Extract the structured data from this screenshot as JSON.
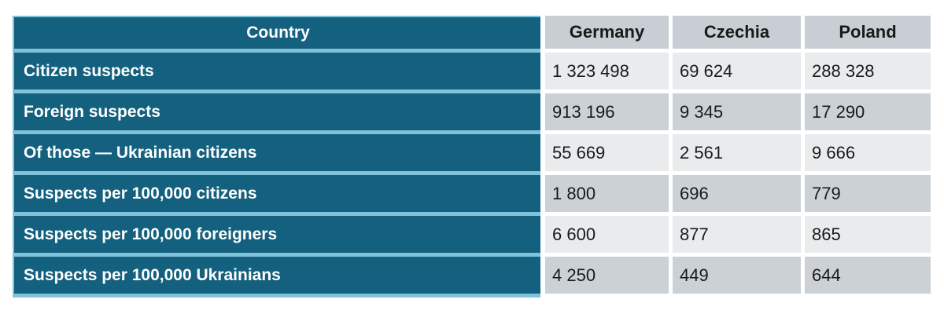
{
  "chart_data": {
    "type": "table",
    "columns": [
      "Country",
      "Germany",
      "Czechia",
      "Poland"
    ],
    "rows": [
      {
        "label": "Citizen suspects",
        "values": [
          "1 323 498",
          "69 624",
          "288 328"
        ]
      },
      {
        "label": "Foreign suspects",
        "values": [
          "913 196",
          "9 345",
          "17 290"
        ]
      },
      {
        "label": "Of those — Ukrainian citizens",
        "values": [
          "55 669",
          "2 561",
          "9 666"
        ]
      },
      {
        "label": "Suspects per 100,000 citizens",
        "values": [
          "1 800",
          "696",
          "779"
        ]
      },
      {
        "label": "Suspects per 100,000 foreigners",
        "values": [
          "6 600",
          "877",
          "865"
        ]
      },
      {
        "label": "Suspects per 100,000 Ukrainians",
        "values": [
          "4 250",
          "449",
          "644"
        ]
      }
    ]
  },
  "colors": {
    "label_column_fill": "#14607f",
    "separator_light_blue": "#7fc3da",
    "column_header_fill": "#c8ced3",
    "row_light": "#e9ebed",
    "row_dark": "#cbd1d5",
    "text_on_teal": "#ffffff",
    "text_on_gray": "#1a1a1a"
  }
}
